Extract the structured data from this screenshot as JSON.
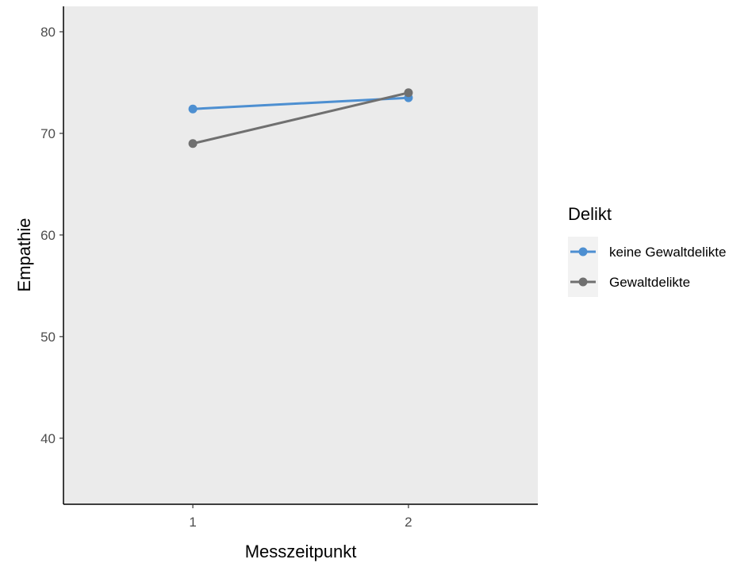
{
  "chart_data": {
    "type": "line",
    "xlabel": "Messzeitpunkt",
    "ylabel": "Empathie",
    "categories": [
      "1",
      "2"
    ],
    "xlim": [
      0.4,
      2.6
    ],
    "ylim": [
      33.5,
      82.5
    ],
    "yticks": [
      40,
      50,
      60,
      70,
      80
    ],
    "grid": false,
    "legend": {
      "title": "Delikt",
      "position": "right"
    },
    "series": [
      {
        "name": "keine Gewaltdelikte",
        "values": [
          72.4,
          73.5
        ],
        "color": "#4d8fd1"
      },
      {
        "name": "Gewaltdelikte",
        "values": [
          69.0,
          74.0
        ],
        "color": "#707070"
      }
    ],
    "colors": {
      "panel_background": "#ebebeb",
      "axis_line": "#000000",
      "legend_key_background": "#f2f2f2"
    }
  }
}
